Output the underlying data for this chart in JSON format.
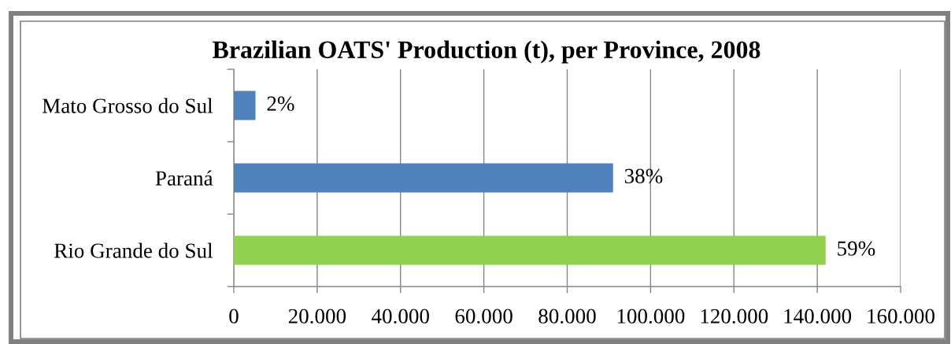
{
  "chart_data": {
    "type": "bar",
    "orientation": "horizontal",
    "title": "Brazilian OATS' Production (t), per Province, 2008",
    "categories": [
      "Mato Grosso do Sul",
      "Paraná",
      "Rio Grande do Sul"
    ],
    "values": [
      5200,
      91000,
      142000
    ],
    "colors": [
      "#4f81bd",
      "#4f81bd",
      "#92d050"
    ],
    "annotations": [
      {
        "text": "2%",
        "x": 5200,
        "y": "Mato Grosso do Sul"
      },
      {
        "text": "38%",
        "x": 91000,
        "y": "Paraná"
      },
      {
        "text": "59%",
        "x": 142000,
        "y": "Rio Grande do Sul"
      }
    ],
    "xlim": [
      0,
      160000
    ],
    "xticks": [
      0,
      {
        "value": 20000,
        "label": "20.000"
      },
      {
        "value": 40000,
        "label": "40.000"
      },
      {
        "value": 60000,
        "label": "60.000"
      },
      {
        "value": 80000,
        "label": "80.000"
      },
      {
        "value": 100000,
        "label": "100.000"
      },
      {
        "value": 120000,
        "label": "120.000"
      },
      {
        "value": 140000,
        "label": "140.000"
      },
      {
        "value": 160000,
        "label": "160.000"
      }
    ],
    "grid": "x"
  }
}
